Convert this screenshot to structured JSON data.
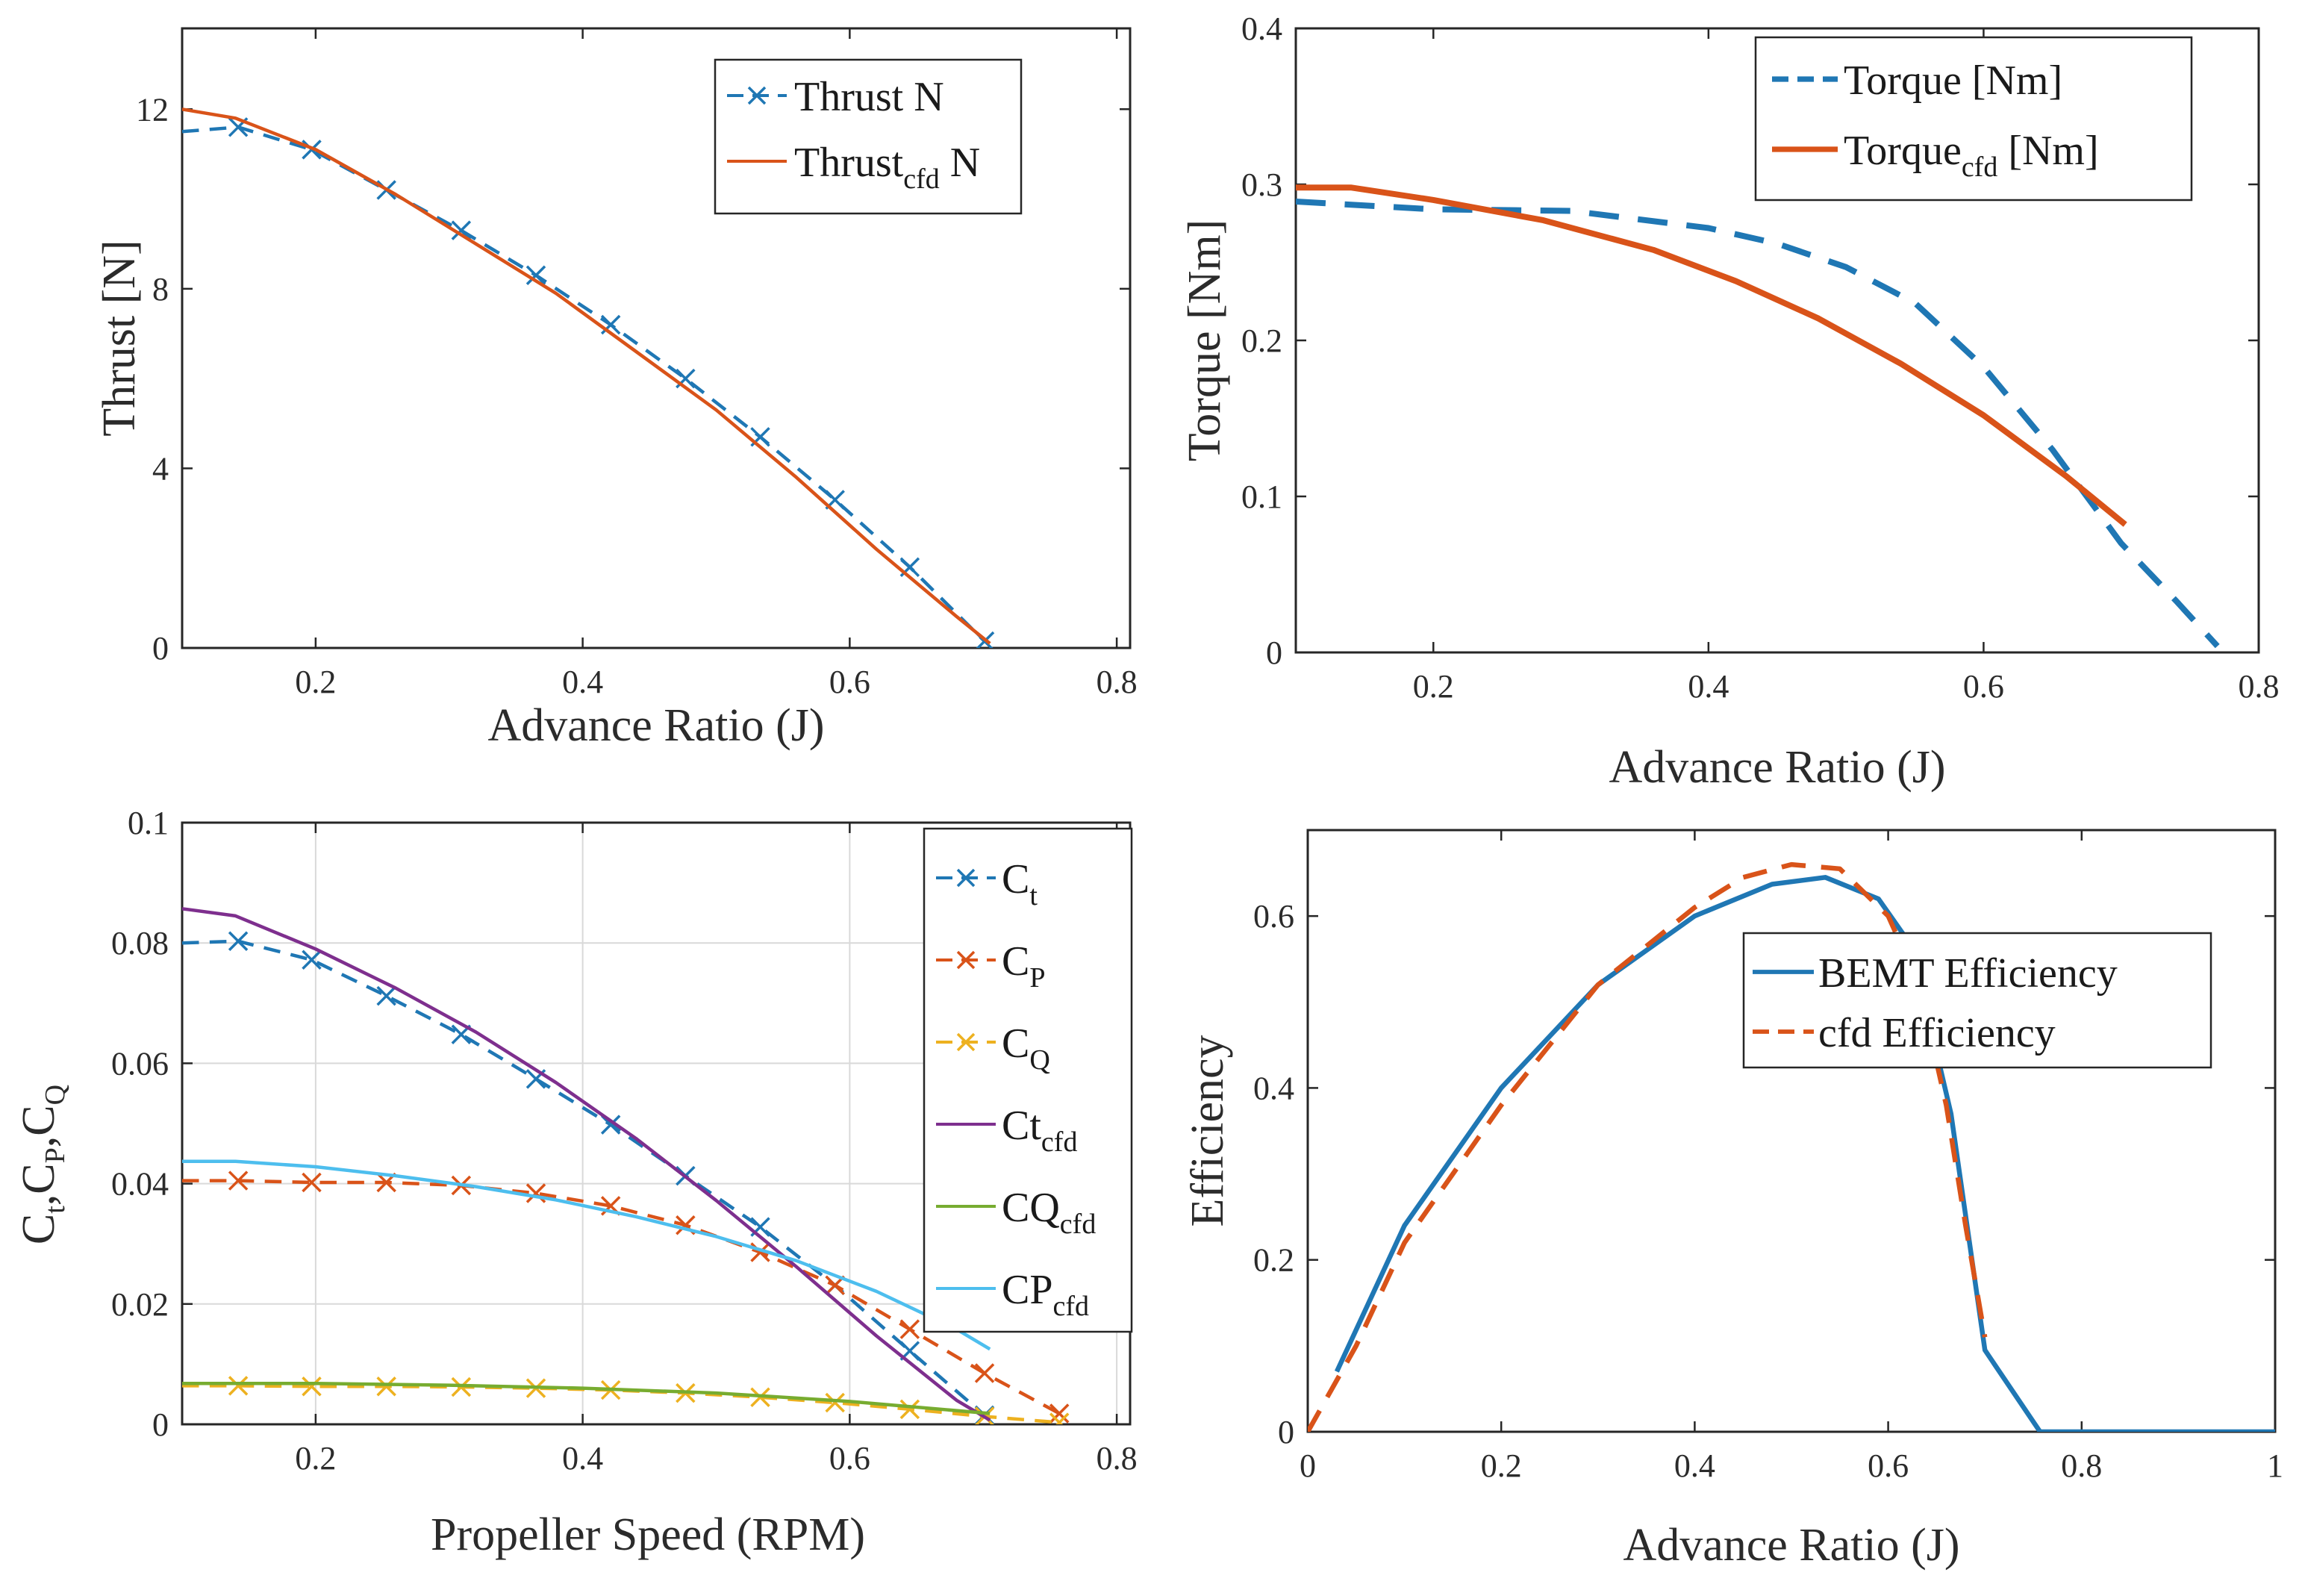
{
  "colors": {
    "blue": "#1f77b4",
    "orange": "#d95319",
    "yellow": "#edb120",
    "purple": "#7e2f8e",
    "green": "#77ac30",
    "cyan": "#4dbeee"
  },
  "chart_data": [
    {
      "type": "line",
      "xlabel": "Advance Ratio (J)",
      "ylabel": "Thrust [N]",
      "xlim": [
        0.1,
        0.81
      ],
      "ylim": [
        0,
        13.8
      ],
      "xticks": [
        "0.2",
        "0.4",
        "0.6",
        "0.8"
      ],
      "xtick_vals": [
        0.2,
        0.4,
        0.6,
        0.8
      ],
      "yticks": [
        "0",
        "4",
        "8",
        "12"
      ],
      "ytick_vals": [
        0,
        4,
        8,
        12
      ],
      "grid": false,
      "legend": "top-right",
      "series": [
        {
          "name": "Thrust N",
          "legend_main": "Thrust N",
          "legend_sub": "",
          "legend_tail": "",
          "color_key": "blue",
          "style": "dash",
          "marker": "x",
          "x": [
            0.1,
            0.142,
            0.197,
            0.253,
            0.309,
            0.365,
            0.421,
            0.477,
            0.533,
            0.589,
            0.645,
            0.701
          ],
          "y": [
            11.5,
            11.6,
            11.1,
            10.2,
            9.3,
            8.3,
            7.2,
            6.0,
            4.7,
            3.3,
            1.8,
            0.15
          ]
        },
        {
          "name": "Thrust cfd N",
          "legend_main": "Thrust",
          "legend_sub": "cfd",
          "legend_tail": " N",
          "color_key": "orange",
          "style": "solid",
          "marker": "none",
          "x": [
            0.1,
            0.14,
            0.2,
            0.26,
            0.32,
            0.38,
            0.44,
            0.5,
            0.56,
            0.62,
            0.68,
            0.705
          ],
          "y": [
            12.0,
            11.8,
            11.1,
            10.1,
            9.0,
            7.9,
            6.6,
            5.3,
            3.8,
            2.2,
            0.7,
            0.1
          ]
        }
      ]
    },
    {
      "type": "line",
      "xlabel": "Advance Ratio (J)",
      "ylabel": "Torque [Nm]",
      "xlim": [
        0.1,
        0.8
      ],
      "ylim": [
        0,
        0.4
      ],
      "xticks": [
        "0.2",
        "0.4",
        "0.6",
        "0.8"
      ],
      "xtick_vals": [
        0.2,
        0.4,
        0.6,
        0.8
      ],
      "yticks": [
        "0",
        "0.1",
        "0.2",
        "0.3",
        "0.4"
      ],
      "ytick_vals": [
        0,
        0.1,
        0.2,
        0.3,
        0.4
      ],
      "grid": false,
      "legend": "top-right",
      "series": [
        {
          "name": "Torque [Nm]",
          "legend_main": "Torque [Nm]",
          "legend_sub": "",
          "legend_tail": "",
          "color_key": "blue",
          "style": "dash",
          "marker": "none",
          "x": [
            0.1,
            0.2,
            0.3,
            0.4,
            0.45,
            0.5,
            0.55,
            0.6,
            0.65,
            0.7,
            0.74,
            0.77
          ],
          "y": [
            0.289,
            0.284,
            0.283,
            0.272,
            0.262,
            0.247,
            0.224,
            0.183,
            0.13,
            0.07,
            0.033,
            0.004
          ]
        },
        {
          "name": "Torque cfd [Nm]",
          "legend_main": "Torque",
          "legend_sub": "cfd",
          "legend_tail": " [Nm]",
          "color_key": "orange",
          "style": "solid",
          "marker": "none",
          "x": [
            0.1,
            0.14,
            0.2,
            0.28,
            0.36,
            0.42,
            0.48,
            0.54,
            0.6,
            0.66,
            0.703
          ],
          "y": [
            0.298,
            0.298,
            0.29,
            0.277,
            0.258,
            0.238,
            0.214,
            0.185,
            0.152,
            0.113,
            0.082
          ]
        }
      ]
    },
    {
      "type": "line",
      "xlabel": "Propeller Speed  (RPM)",
      "ylabel": "Ct,CP,CQ",
      "xlim": [
        0.1,
        0.81
      ],
      "ylim": [
        0,
        0.1
      ],
      "xticks": [
        "0.2",
        "0.4",
        "0.6",
        "0.8"
      ],
      "xtick_vals": [
        0.2,
        0.4,
        0.6,
        0.8
      ],
      "yticks": [
        "0",
        "0.02",
        "0.04",
        "0.06",
        "0.08",
        "0.1"
      ],
      "ytick_vals": [
        0,
        0.02,
        0.04,
        0.06,
        0.08,
        0.1
      ],
      "grid": true,
      "legend": "top-right",
      "series": [
        {
          "name": "Ct",
          "legend_main": "C",
          "legend_sub": "t",
          "legend_tail": "",
          "color_key": "blue",
          "style": "dash",
          "marker": "x",
          "x": [
            0.1,
            0.142,
            0.197,
            0.253,
            0.309,
            0.365,
            0.421,
            0.477,
            0.533,
            0.589,
            0.645,
            0.701
          ],
          "y": [
            0.08,
            0.0803,
            0.0772,
            0.0712,
            0.0648,
            0.0574,
            0.0498,
            0.0413,
            0.0328,
            0.0231,
            0.0122,
            0.0015
          ]
        },
        {
          "name": "CP",
          "legend_main": "C",
          "legend_sub": "P",
          "legend_tail": "",
          "color_key": "orange",
          "style": "dash",
          "marker": "x",
          "x": [
            0.1,
            0.142,
            0.197,
            0.253,
            0.309,
            0.365,
            0.421,
            0.477,
            0.533,
            0.589,
            0.645,
            0.701,
            0.757
          ],
          "y": [
            0.0405,
            0.0405,
            0.0402,
            0.0402,
            0.0397,
            0.0384,
            0.0363,
            0.0331,
            0.0286,
            0.0231,
            0.0158,
            0.0085,
            0.0018
          ]
        },
        {
          "name": "CQ",
          "legend_main": "C",
          "legend_sub": "Q",
          "legend_tail": "",
          "color_key": "yellow",
          "style": "dash",
          "marker": "x",
          "x": [
            0.1,
            0.142,
            0.197,
            0.253,
            0.309,
            0.365,
            0.421,
            0.477,
            0.533,
            0.589,
            0.645,
            0.701,
            0.757
          ],
          "y": [
            0.0064,
            0.0064,
            0.0063,
            0.0063,
            0.0062,
            0.006,
            0.0057,
            0.0052,
            0.0045,
            0.0036,
            0.0025,
            0.0013,
            0.0003
          ]
        },
        {
          "name": "Ct cfd",
          "legend_main": "Ct",
          "legend_sub": "cfd",
          "legend_tail": "",
          "color_key": "purple",
          "style": "solid",
          "marker": "none",
          "x": [
            0.1,
            0.14,
            0.2,
            0.26,
            0.32,
            0.38,
            0.44,
            0.5,
            0.56,
            0.62,
            0.68,
            0.705
          ],
          "y": [
            0.0857,
            0.0845,
            0.079,
            0.0725,
            0.0652,
            0.0568,
            0.0475,
            0.0372,
            0.0262,
            0.0147,
            0.004,
            0.0007
          ]
        },
        {
          "name": "CQ cfd",
          "legend_main": "CQ",
          "legend_sub": "cfd",
          "legend_tail": "",
          "color_key": "green",
          "style": "solid",
          "marker": "none",
          "x": [
            0.1,
            0.2,
            0.3,
            0.4,
            0.5,
            0.6,
            0.705
          ],
          "y": [
            0.0068,
            0.0068,
            0.0065,
            0.006,
            0.0052,
            0.0038,
            0.0018
          ]
        },
        {
          "name": "CP cfd",
          "legend_main": "CP",
          "legend_sub": "cfd",
          "legend_tail": "",
          "color_key": "cyan",
          "style": "solid",
          "marker": "none",
          "x": [
            0.1,
            0.14,
            0.2,
            0.26,
            0.32,
            0.38,
            0.44,
            0.5,
            0.56,
            0.62,
            0.68,
            0.705
          ],
          "y": [
            0.0437,
            0.0437,
            0.0428,
            0.0413,
            0.0395,
            0.0373,
            0.0345,
            0.0312,
            0.0272,
            0.0221,
            0.0158,
            0.0125
          ]
        }
      ]
    },
    {
      "type": "line",
      "xlabel": "Advance Ratio (J)",
      "ylabel": "Efficiency",
      "xlim": [
        0,
        1
      ],
      "ylim": [
        0,
        0.7
      ],
      "xticks": [
        "0",
        "0.2",
        "0.4",
        "0.6",
        "0.8",
        "1"
      ],
      "xtick_vals": [
        0,
        0.2,
        0.4,
        0.6,
        0.8,
        1
      ],
      "yticks": [
        "0",
        "0.2",
        "0.4",
        "0.6"
      ],
      "ytick_vals": [
        0,
        0.2,
        0.4,
        0.6
      ],
      "grid": false,
      "legend": "right",
      "series": [
        {
          "name": "BEMT Efficiency",
          "legend_main": "BEMT Efficiency",
          "legend_sub": "",
          "legend_tail": "",
          "color_key": "blue",
          "style": "solid",
          "marker": "none",
          "x": [
            0.03,
            0.1,
            0.2,
            0.3,
            0.4,
            0.48,
            0.535,
            0.59,
            0.615,
            0.64,
            0.665,
            0.7,
            0.757,
            0.8,
            1.0
          ],
          "y": [
            0.07,
            0.24,
            0.4,
            0.52,
            0.6,
            0.637,
            0.645,
            0.62,
            0.58,
            0.49,
            0.37,
            0.095,
            0.0,
            0.0,
            0.0
          ]
        },
        {
          "name": "cfd Efficiency",
          "legend_main": "cfd Efficiency",
          "legend_sub": "",
          "legend_tail": "",
          "color_key": "orange",
          "style": "dash",
          "marker": "none",
          "x": [
            0.0,
            0.05,
            0.1,
            0.2,
            0.3,
            0.4,
            0.45,
            0.5,
            0.55,
            0.6,
            0.62,
            0.64,
            0.66,
            0.68,
            0.7
          ],
          "y": [
            0.0,
            0.1,
            0.22,
            0.38,
            0.52,
            0.61,
            0.645,
            0.66,
            0.655,
            0.6,
            0.55,
            0.48,
            0.38,
            0.24,
            0.11
          ]
        }
      ]
    }
  ]
}
